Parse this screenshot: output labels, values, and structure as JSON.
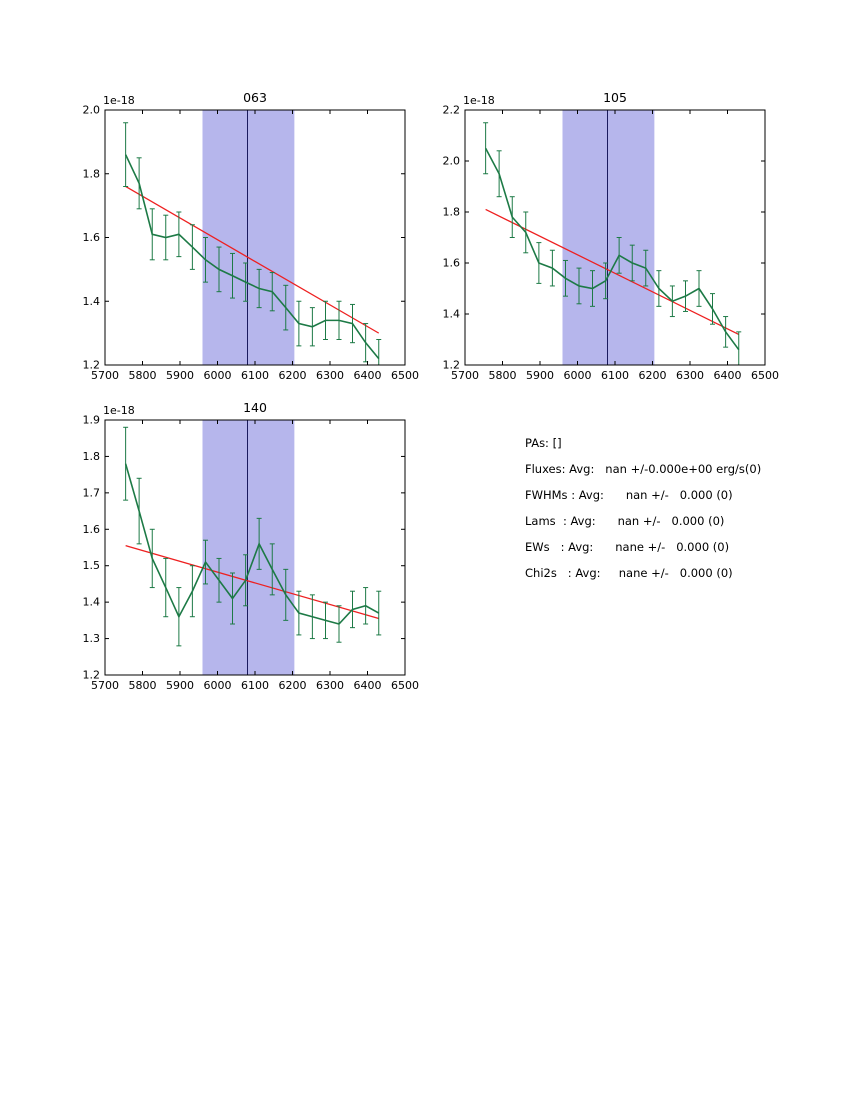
{
  "colors": {
    "background": "#ffffff",
    "data": "#1d7a46",
    "fit": "#ee2020",
    "band": "#b6b6ec",
    "band_line": "#1a1a5e",
    "axis": "#000000"
  },
  "info_panel": {
    "lines": [
      "PAs: []",
      "Fluxes: Avg:   nan +/-0.000e+00 erg/s(0)",
      "FWHMs : Avg:      nan +/-   0.000 (0)",
      "Lams  : Avg:      nan +/-   0.000 (0)",
      "EWs   : Avg:      nane +/-   0.000 (0)",
      "Chi2s   : Avg:     nane +/-   0.000 (0)"
    ]
  },
  "chart_data": [
    {
      "type": "line",
      "title": "063",
      "offset_label": "1e-18",
      "xlabel": "",
      "ylabel": "",
      "xlim": [
        5700,
        6500
      ],
      "ylim": [
        1.2,
        2.0
      ],
      "xticks": [
        5700,
        5800,
        5900,
        6000,
        6100,
        6200,
        6300,
        6400,
        6500
      ],
      "yticks": [
        1.2,
        1.4,
        1.6,
        1.8,
        2.0
      ],
      "band": [
        5960,
        6205
      ],
      "band_center": 6080,
      "fit_line": {
        "x": [
          5755,
          6430
        ],
        "y": [
          1.76,
          1.3
        ]
      },
      "x": [
        5755,
        5791,
        5826,
        5862,
        5897,
        5933,
        5968,
        6004,
        6040,
        6075,
        6111,
        6146,
        6182,
        6217,
        6253,
        6288,
        6324,
        6360,
        6395,
        6430
      ],
      "y": [
        1.86,
        1.77,
        1.61,
        1.6,
        1.61,
        1.57,
        1.53,
        1.5,
        1.48,
        1.46,
        1.44,
        1.43,
        1.38,
        1.33,
        1.32,
        1.34,
        1.34,
        1.33,
        1.27,
        1.22
      ],
      "yerr": [
        0.1,
        0.08,
        0.08,
        0.07,
        0.07,
        0.07,
        0.07,
        0.07,
        0.07,
        0.06,
        0.06,
        0.06,
        0.07,
        0.07,
        0.06,
        0.06,
        0.06,
        0.06,
        0.06,
        0.06
      ]
    },
    {
      "type": "line",
      "title": "105",
      "offset_label": "1e-18",
      "xlabel": "",
      "ylabel": "",
      "xlim": [
        5700,
        6500
      ],
      "ylim": [
        1.2,
        2.2
      ],
      "xticks": [
        5700,
        5800,
        5900,
        6000,
        6100,
        6200,
        6300,
        6400,
        6500
      ],
      "yticks": [
        1.2,
        1.4,
        1.6,
        1.8,
        2.0,
        2.2
      ],
      "band": [
        5960,
        6205
      ],
      "band_center": 6080,
      "fit_line": {
        "x": [
          5755,
          6430
        ],
        "y": [
          1.81,
          1.32
        ]
      },
      "x": [
        5755,
        5791,
        5826,
        5862,
        5897,
        5933,
        5968,
        6004,
        6040,
        6075,
        6111,
        6146,
        6182,
        6217,
        6253,
        6288,
        6324,
        6360,
        6395,
        6430
      ],
      "y": [
        2.05,
        1.95,
        1.78,
        1.72,
        1.6,
        1.58,
        1.54,
        1.51,
        1.5,
        1.53,
        1.63,
        1.6,
        1.58,
        1.5,
        1.45,
        1.47,
        1.5,
        1.42,
        1.33,
        1.26
      ],
      "yerr": [
        0.1,
        0.09,
        0.08,
        0.08,
        0.08,
        0.07,
        0.07,
        0.07,
        0.07,
        0.07,
        0.07,
        0.07,
        0.07,
        0.07,
        0.06,
        0.06,
        0.07,
        0.06,
        0.06,
        0.07
      ]
    },
    {
      "type": "line",
      "title": "140",
      "offset_label": "1e-18",
      "xlabel": "",
      "ylabel": "",
      "xlim": [
        5700,
        6500
      ],
      "ylim": [
        1.2,
        1.9
      ],
      "xticks": [
        5700,
        5800,
        5900,
        6000,
        6100,
        6200,
        6300,
        6400,
        6500
      ],
      "yticks": [
        1.2,
        1.3,
        1.4,
        1.5,
        1.6,
        1.7,
        1.8,
        1.9
      ],
      "band": [
        5960,
        6205
      ],
      "band_center": 6080,
      "fit_line": {
        "x": [
          5755,
          6430
        ],
        "y": [
          1.555,
          1.355
        ]
      },
      "x": [
        5755,
        5791,
        5826,
        5862,
        5897,
        5933,
        5968,
        6004,
        6040,
        6075,
        6111,
        6146,
        6182,
        6217,
        6253,
        6288,
        6324,
        6360,
        6395,
        6430
      ],
      "y": [
        1.78,
        1.65,
        1.52,
        1.44,
        1.36,
        1.43,
        1.51,
        1.46,
        1.41,
        1.46,
        1.56,
        1.49,
        1.42,
        1.37,
        1.36,
        1.35,
        1.34,
        1.38,
        1.39,
        1.37
      ],
      "yerr": [
        0.1,
        0.09,
        0.08,
        0.08,
        0.08,
        0.07,
        0.06,
        0.06,
        0.07,
        0.07,
        0.07,
        0.07,
        0.07,
        0.06,
        0.06,
        0.05,
        0.05,
        0.05,
        0.05,
        0.06
      ]
    }
  ]
}
